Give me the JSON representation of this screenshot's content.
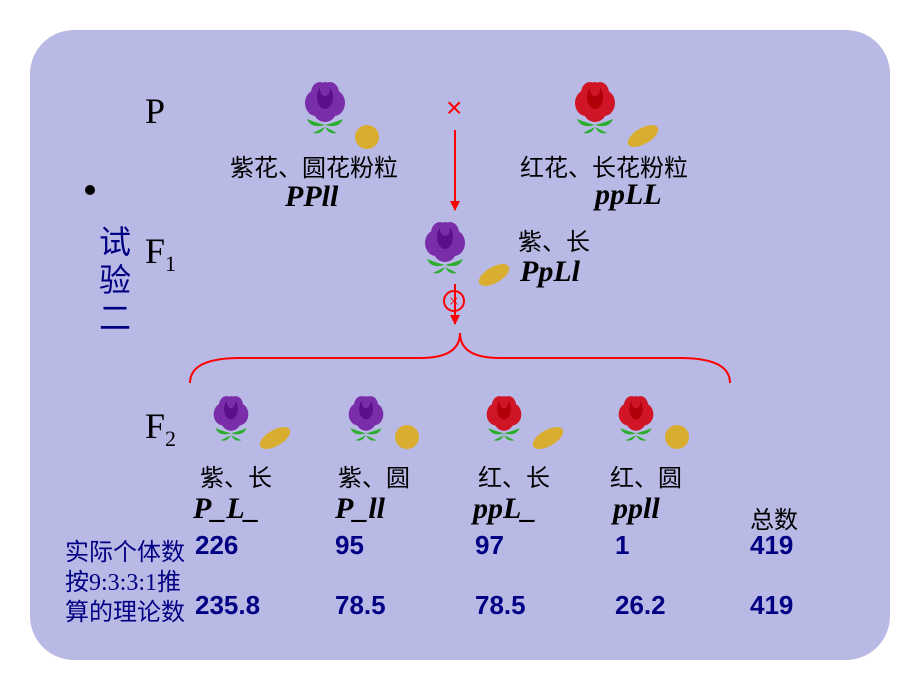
{
  "panel": {
    "bg": "#b9b9e6",
    "radius": 44
  },
  "sideLabel": "试验二",
  "generations": {
    "P": "P",
    "F1": "F",
    "F1sub": "1",
    "F2": "F",
    "F2sub": "2"
  },
  "parents": {
    "left": {
      "label": "紫花、圆花粉粒",
      "genotype": "PPll",
      "flowerColor": "#7a2da8",
      "pollen": "round"
    },
    "right": {
      "label": "红花、长花粉粒",
      "genotype": "ppLL",
      "flowerColor": "#cf1526",
      "pollen": "long"
    }
  },
  "f1": {
    "label": "紫、长",
    "genotype": "PpLl",
    "flowerColor": "#7a2da8",
    "pollen": "long"
  },
  "f2": [
    {
      "label": "紫、长",
      "genotype": "P_L_",
      "flowerColor": "#7a2da8",
      "pollen": "long"
    },
    {
      "label": "紫、圆",
      "genotype": "P_ll",
      "flowerColor": "#7a2da8",
      "pollen": "round"
    },
    {
      "label": "红、长",
      "genotype": "ppL_",
      "flowerColor": "#cf1526",
      "pollen": "long"
    },
    {
      "label": "红、圆",
      "genotype": "ppll",
      "flowerColor": "#cf1526",
      "pollen": "round"
    }
  ],
  "table": {
    "totalHeader": "总数",
    "rowLabels": {
      "actual": "实际个体数",
      "theo1": "按9:3:3:1推",
      "theo2": "算的理论数"
    },
    "actual": [
      "226",
      "95",
      "97",
      "1",
      "419"
    ],
    "theory": [
      "235.8",
      "78.5",
      "78.5",
      "26.2",
      "419"
    ]
  },
  "colors": {
    "textBlue": "#010083",
    "arrow": "#ff0000",
    "pollen": "#d9ae30",
    "leaf": "#2eae2e"
  }
}
